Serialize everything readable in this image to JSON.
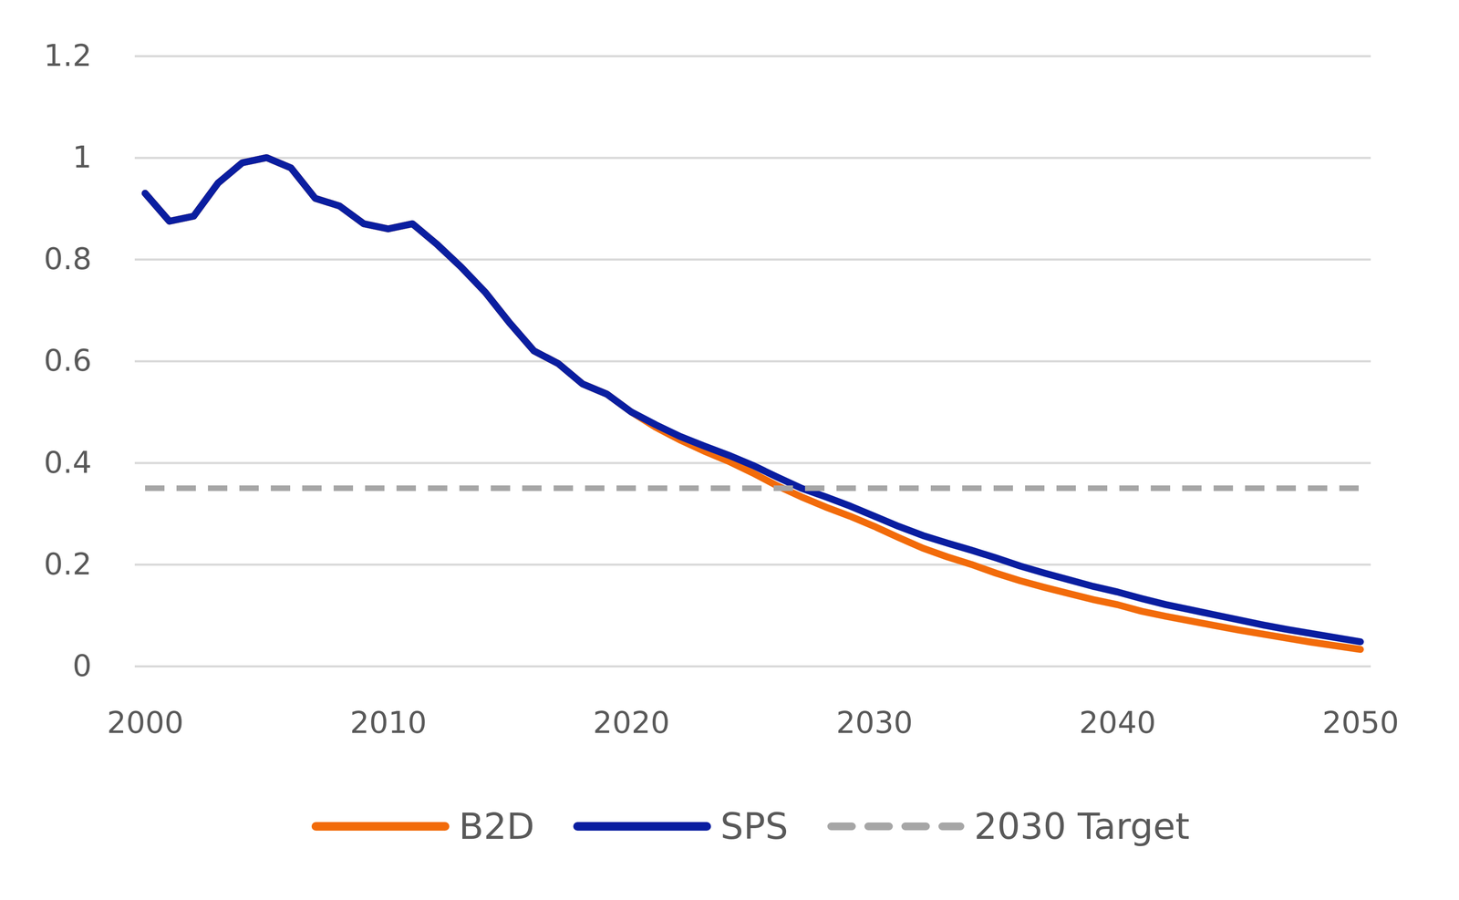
{
  "chart_data": {
    "type": "line",
    "x": [
      2000,
      2001,
      2002,
      2003,
      2004,
      2005,
      2006,
      2007,
      2008,
      2009,
      2010,
      2011,
      2012,
      2013,
      2014,
      2015,
      2016,
      2017,
      2018,
      2019,
      2020,
      2021,
      2022,
      2023,
      2024,
      2025,
      2026,
      2027,
      2028,
      2029,
      2030,
      2031,
      2032,
      2033,
      2034,
      2035,
      2036,
      2037,
      2038,
      2039,
      2040,
      2041,
      2042,
      2043,
      2044,
      2045,
      2046,
      2047,
      2048,
      2049,
      2050
    ],
    "series": [
      {
        "name": "B2D",
        "color": "#f26b0a",
        "line_style": "solid",
        "values": [
          0.93,
          0.875,
          0.885,
          0.95,
          0.99,
          1.0,
          0.98,
          0.92,
          0.905,
          0.87,
          0.86,
          0.87,
          0.83,
          0.785,
          0.735,
          0.675,
          0.62,
          0.595,
          0.555,
          0.535,
          0.5,
          0.47,
          0.445,
          0.423,
          0.403,
          0.38,
          0.355,
          0.333,
          0.313,
          0.295,
          0.275,
          0.253,
          0.232,
          0.215,
          0.2,
          0.183,
          0.168,
          0.155,
          0.143,
          0.131,
          0.121,
          0.108,
          0.098,
          0.089,
          0.08,
          0.071,
          0.063,
          0.055,
          0.047,
          0.04,
          0.033
        ]
      },
      {
        "name": "SPS",
        "color": "#0a1ea0",
        "line_style": "solid",
        "values": [
          0.93,
          0.875,
          0.885,
          0.95,
          0.99,
          1.0,
          0.98,
          0.92,
          0.905,
          0.87,
          0.86,
          0.87,
          0.83,
          0.785,
          0.735,
          0.675,
          0.62,
          0.595,
          0.555,
          0.535,
          0.5,
          0.475,
          0.452,
          0.433,
          0.415,
          0.395,
          0.372,
          0.35,
          0.333,
          0.315,
          0.295,
          0.275,
          0.257,
          0.242,
          0.228,
          0.213,
          0.197,
          0.183,
          0.17,
          0.157,
          0.146,
          0.133,
          0.121,
          0.111,
          0.101,
          0.091,
          0.081,
          0.072,
          0.064,
          0.056,
          0.048
        ]
      },
      {
        "name": "2030 Target",
        "color": "#a6a6a6",
        "line_style": "dashed",
        "values": [
          0.35,
          0.35,
          0.35,
          0.35,
          0.35,
          0.35,
          0.35,
          0.35,
          0.35,
          0.35,
          0.35,
          0.35,
          0.35,
          0.35,
          0.35,
          0.35,
          0.35,
          0.35,
          0.35,
          0.35,
          0.35,
          0.35,
          0.35,
          0.35,
          0.35,
          0.35,
          0.35,
          0.35,
          0.35,
          0.35,
          0.35,
          0.35,
          0.35,
          0.35,
          0.35,
          0.35,
          0.35,
          0.35,
          0.35,
          0.35,
          0.35,
          0.35,
          0.35,
          0.35,
          0.35,
          0.35,
          0.35,
          0.35,
          0.35,
          0.35,
          0.35
        ]
      }
    ],
    "xlim": [
      2000,
      2050
    ],
    "xticks": [
      2000,
      2010,
      2020,
      2030,
      2040,
      2050
    ],
    "ylim": [
      0,
      1.2
    ],
    "yticks": [
      0,
      0.2,
      0.4,
      0.6,
      0.8,
      1,
      1.2
    ],
    "grid": true,
    "legend": "bottom"
  }
}
